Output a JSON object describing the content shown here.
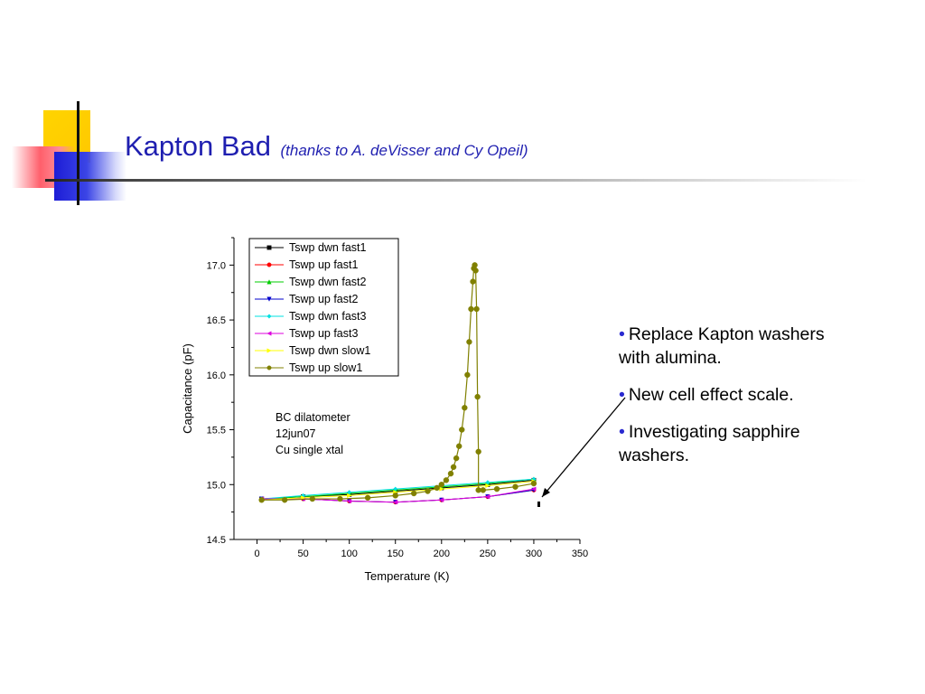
{
  "slide": {
    "title": "Kapton Bad",
    "title_note": "(thanks to A. deVisser and Cy Opeil)",
    "accent_color": "#1f1fb0"
  },
  "bullets": [
    {
      "text": "Replace Kapton washers with alumina."
    },
    {
      "text": "New cell effect scale."
    },
    {
      "text": "Investigating sapphire washers."
    }
  ],
  "chart_data": {
    "type": "scatter",
    "xlabel": "Temperature (K)",
    "ylabel": "Capacitance (pF)",
    "xlim": [
      -25,
      350
    ],
    "ylim": [
      14.5,
      17.25
    ],
    "xticks": [
      0,
      50,
      100,
      150,
      200,
      250,
      300,
      350
    ],
    "yticks": [
      14.5,
      15.0,
      15.5,
      16.0,
      16.5,
      17.0
    ],
    "ytick_labels": [
      "14.5",
      "15.0",
      "15.5",
      "16.0",
      "16.5",
      "17.0"
    ],
    "legend_position": "top-left",
    "annotation": [
      "BC dilatometer",
      "12jun07",
      "Cu single xtal"
    ],
    "grid": false,
    "series": [
      {
        "name": "Tswp dwn fast1",
        "color": "#000000",
        "marker": "square",
        "x": [
          300,
          250,
          200,
          150,
          100,
          50,
          5
        ],
        "y": [
          15.04,
          15.0,
          14.97,
          14.94,
          14.91,
          14.89,
          14.87
        ]
      },
      {
        "name": "Tswp up fast1",
        "color": "#ff0000",
        "marker": "circle",
        "x": [
          5,
          50,
          100,
          150,
          200,
          250,
          300
        ],
        "y": [
          14.87,
          14.87,
          14.85,
          14.84,
          14.86,
          14.89,
          14.95
        ]
      },
      {
        "name": "Tswp dwn fast2",
        "color": "#00cc00",
        "marker": "triangle-up",
        "x": [
          300,
          250,
          200,
          150,
          100,
          50,
          5
        ],
        "y": [
          15.05,
          15.01,
          14.98,
          14.95,
          14.92,
          14.89,
          14.87
        ]
      },
      {
        "name": "Tswp up fast2",
        "color": "#0000cc",
        "marker": "triangle-down",
        "x": [
          5,
          50,
          100,
          150,
          200,
          250,
          300
        ],
        "y": [
          14.87,
          14.87,
          14.85,
          14.84,
          14.86,
          14.89,
          14.95
        ]
      },
      {
        "name": "Tswp dwn fast3",
        "color": "#00e0e0",
        "marker": "diamond",
        "x": [
          300,
          250,
          200,
          150,
          100,
          50,
          5
        ],
        "y": [
          15.05,
          15.02,
          14.99,
          14.96,
          14.93,
          14.9,
          14.87
        ]
      },
      {
        "name": "Tswp up fast3",
        "color": "#dd00dd",
        "marker": "triangle-left",
        "x": [
          5,
          50,
          100,
          150,
          200,
          250,
          300
        ],
        "y": [
          14.87,
          14.87,
          14.85,
          14.84,
          14.86,
          14.89,
          14.96
        ]
      },
      {
        "name": "Tswp dwn slow1",
        "color": "#ffff00",
        "marker": "triangle-right",
        "x": [
          300,
          250,
          200,
          150,
          100,
          50,
          5
        ],
        "y": [
          15.03,
          14.99,
          14.96,
          14.93,
          14.9,
          14.88,
          14.86
        ]
      },
      {
        "name": "Tswp up slow1",
        "color": "#808000",
        "marker": "circle",
        "x": [
          5,
          30,
          60,
          90,
          120,
          150,
          170,
          185,
          195,
          200,
          205,
          210,
          213,
          216,
          219,
          222,
          225,
          228,
          230,
          232,
          234,
          235,
          236,
          237,
          238,
          239,
          240,
          240,
          245,
          260,
          280,
          300
        ],
        "y": [
          14.86,
          14.86,
          14.87,
          14.87,
          14.88,
          14.9,
          14.92,
          14.94,
          14.97,
          15.0,
          15.04,
          15.1,
          15.16,
          15.24,
          15.35,
          15.5,
          15.7,
          16.0,
          16.3,
          16.6,
          16.85,
          16.97,
          17.0,
          16.95,
          16.6,
          15.8,
          15.3,
          14.95,
          14.95,
          14.96,
          14.98,
          15.01
        ]
      }
    ]
  }
}
